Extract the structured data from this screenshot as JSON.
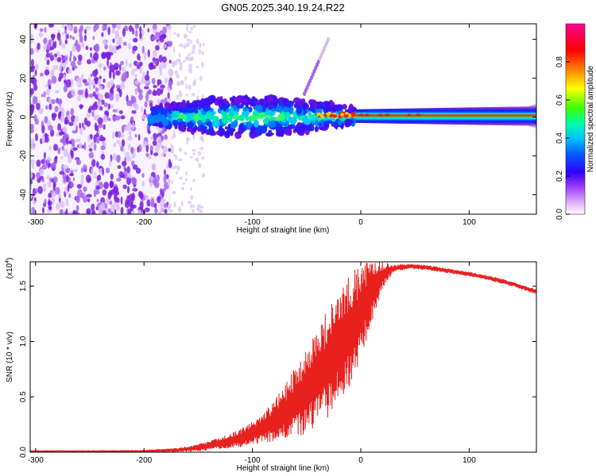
{
  "title": "GN05.2025.340.19.24.R22",
  "colors": {
    "snr_line": "#e8201e",
    "spectrogram_noise": "#7a2ad8",
    "spectrogram_core": "#ff2a00"
  },
  "chart_data": [
    {
      "type": "heatmap",
      "name": "spectrogram",
      "xlabel": "Height of straight line (km)",
      "ylabel": "Frequency (Hz)",
      "xlim": [
        -305,
        162
      ],
      "ylim": [
        -50,
        48
      ],
      "x_ticks": [
        -300,
        -200,
        -100,
        0,
        100
      ],
      "x_tick_labels": [
        "-300",
        "-200",
        "-100",
        "0",
        "100"
      ],
      "y_ticks": [
        -40,
        -20,
        0,
        20,
        40
      ],
      "y_tick_labels": [
        "-40",
        "-20",
        "0",
        "20",
        "40"
      ],
      "features": {
        "noise_region_km": [
          -305,
          -175
        ],
        "sparse_noise_km": [
          -175,
          -145
        ],
        "turbulent_band_km": [
          -195,
          -5
        ],
        "turbulent_band_half_width_hz": [
          4,
          10
        ],
        "strong_core_km": [
          -5,
          162
        ],
        "core_frequency_hz": 1,
        "oblique_echo": {
          "start_km": [
            -52,
            12
          ],
          "end_km": [
            -30,
            40
          ]
        }
      },
      "colorbar": {
        "label": "Normalized spectral amplitude",
        "range": [
          0,
          1
        ],
        "ticks": [
          0.0,
          0.2,
          0.4,
          0.6,
          0.8
        ],
        "tick_labels": [
          "0.0",
          "0.2",
          "0.4",
          "0.6",
          "0.8"
        ],
        "colors": [
          "#ffffff",
          "#c080ff",
          "#6a00ff",
          "#0000ff",
          "#00c8ff",
          "#00ff80",
          "#80ff00",
          "#ffff00",
          "#ff8000",
          "#ff0000",
          "#ff00a0"
        ]
      }
    },
    {
      "type": "line",
      "name": "snr",
      "xlabel": "Height of straight line (km)",
      "ylabel": "SNR (10 * v/v)",
      "y_multiplier": "(x10",
      "y_multiplier_exp": "4",
      "y_multiplier_close": ")",
      "xlim": [
        -305,
        162
      ],
      "ylim": [
        0,
        1.72
      ],
      "x_ticks": [
        -300,
        -200,
        -100,
        0,
        100
      ],
      "x_tick_labels": [
        "-300",
        "-200",
        "-100",
        "0",
        "100"
      ],
      "y_ticks": [
        0.0,
        0.5,
        1.0,
        1.5
      ],
      "y_tick_labels": [
        "0.0",
        "0.5",
        "1.0",
        "1.5"
      ],
      "series": [
        {
          "name": "SNR",
          "envelope_x": [
            -305,
            -250,
            -200,
            -170,
            -150,
            -130,
            -110,
            -95,
            -80,
            -65,
            -50,
            -40,
            -30,
            -20,
            -10,
            0,
            10,
            20,
            30,
            45,
            60,
            80,
            100,
            120,
            140,
            162
          ],
          "envelope_mean": [
            0.01,
            0.01,
            0.01,
            0.02,
            0.04,
            0.08,
            0.13,
            0.2,
            0.28,
            0.4,
            0.55,
            0.68,
            0.8,
            0.95,
            1.1,
            1.25,
            1.45,
            1.6,
            1.66,
            1.68,
            1.67,
            1.64,
            1.61,
            1.57,
            1.52,
            1.45
          ],
          "envelope_spread": [
            0.005,
            0.005,
            0.008,
            0.015,
            0.03,
            0.05,
            0.08,
            0.12,
            0.18,
            0.3,
            0.4,
            0.45,
            0.5,
            0.5,
            0.5,
            0.45,
            0.3,
            0.12,
            0.03,
            0.02,
            0.02,
            0.02,
            0.02,
            0.02,
            0.02,
            0.02
          ]
        }
      ]
    }
  ]
}
